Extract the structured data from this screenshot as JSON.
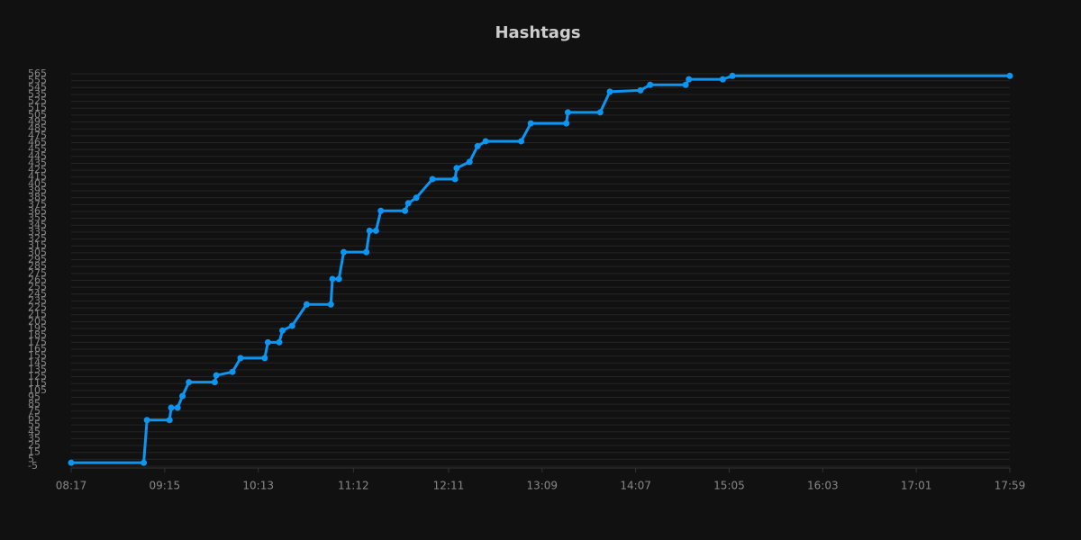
{
  "chart_data": {
    "type": "line",
    "title": "Hashtags",
    "x": [
      "08:17",
      "09:02",
      "09:04",
      "09:18",
      "09:19",
      "09:23",
      "09:26",
      "09:30",
      "09:46",
      "09:47",
      "09:57",
      "10:02",
      "10:17",
      "10:19",
      "10:26",
      "10:28",
      "10:34",
      "10:43",
      "10:58",
      "10:59",
      "11:03",
      "11:06",
      "11:20",
      "11:22",
      "11:26",
      "11:29",
      "11:44",
      "11:46",
      "11:51",
      "12:01",
      "12:15",
      "12:16",
      "12:24",
      "12:29",
      "12:34",
      "12:56",
      "13:02",
      "13:24",
      "13:25",
      "13:45",
      "13:51",
      "14:10",
      "14:16",
      "14:38",
      "14:40",
      "15:01",
      "15:07",
      "17:59"
    ],
    "values": [
      0,
      0,
      62,
      62,
      80,
      80,
      97,
      117,
      117,
      127,
      132,
      152,
      152,
      175,
      175,
      192,
      199,
      230,
      230,
      267,
      267,
      306,
      306,
      337,
      337,
      366,
      366,
      377,
      385,
      412,
      412,
      428,
      437,
      460,
      467,
      467,
      493,
      493,
      509,
      509,
      539,
      541,
      549,
      549,
      557,
      557,
      562,
      562
    ],
    "color": "#0a96f2",
    "xlim": [
      "08:17",
      "17:59"
    ],
    "xticks": [
      "08:17",
      "09:15",
      "10:13",
      "11:12",
      "12:11",
      "13:09",
      "14:07",
      "15:05",
      "16:03",
      "17:01",
      "17:59"
    ],
    "ylim": [
      -5,
      565
    ],
    "yticks": [
      -5,
      5,
      15,
      25,
      35,
      45,
      55,
      65,
      75,
      85,
      95,
      105,
      115,
      125,
      135,
      145,
      155,
      165,
      175,
      185,
      195,
      205,
      215,
      225,
      235,
      245,
      255,
      265,
      275,
      285,
      295,
      305,
      315,
      325,
      335,
      345,
      355,
      365,
      375,
      385,
      395,
      405,
      415,
      425,
      435,
      445,
      455,
      465,
      475,
      485,
      495,
      505,
      515,
      525,
      535,
      545,
      555,
      565
    ],
    "grid": true
  }
}
